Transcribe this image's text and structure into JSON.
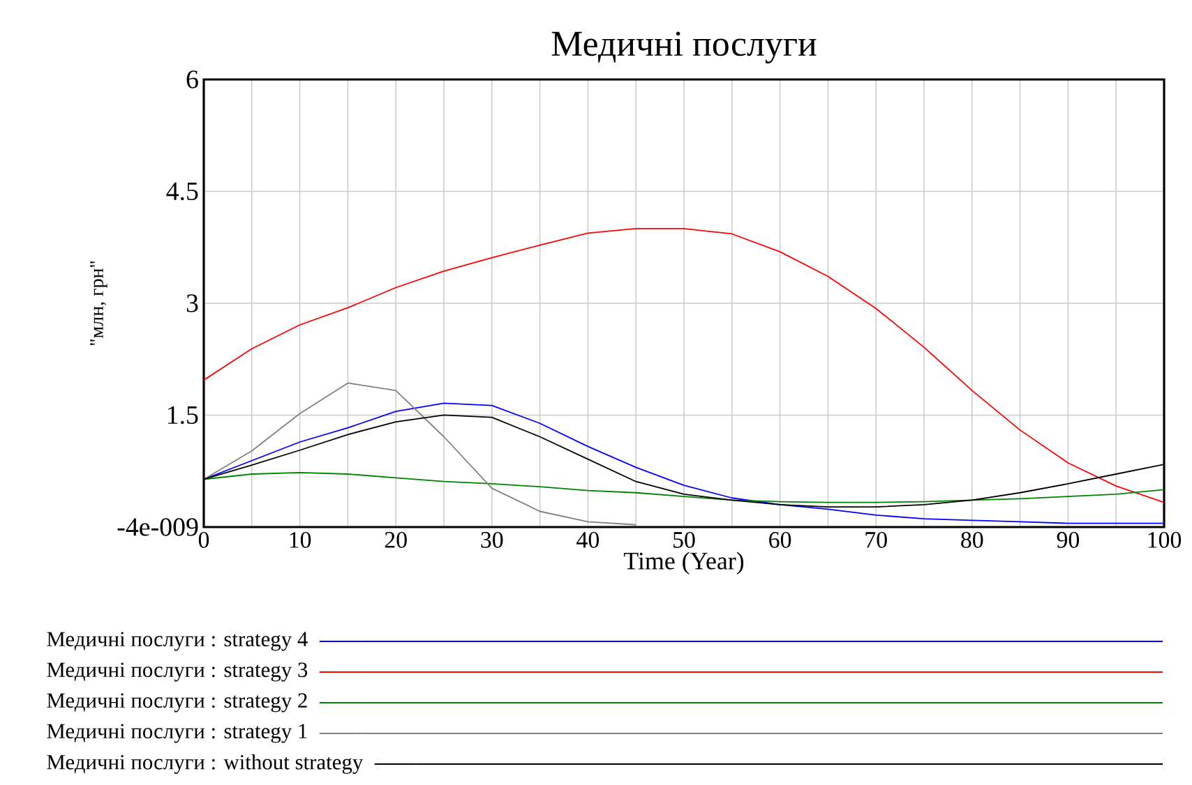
{
  "chart_data": {
    "type": "line",
    "title": "Медичні послуги",
    "xlabel": "Time (Year)",
    "ylabel": "\"млн, грн\"",
    "x": [
      0,
      5,
      10,
      15,
      20,
      25,
      30,
      35,
      40,
      45,
      50,
      55,
      60,
      65,
      70,
      75,
      80,
      85,
      90,
      95,
      100
    ],
    "xlim": [
      0,
      100
    ],
    "xticks": [
      0,
      10,
      20,
      30,
      40,
      50,
      60,
      70,
      80,
      90,
      100
    ],
    "ylim": [
      -4e-09,
      6
    ],
    "yticks": [
      {
        "value": -4e-09,
        "label": "-4e-009"
      },
      1.5,
      3,
      4.5,
      6
    ],
    "grid": true,
    "legend": "bottom",
    "marker": "none",
    "line_style": "solid",
    "series": [
      {
        "name": "Медичні послуги : strategy 4",
        "color": "#0000ff",
        "values": [
          0.64,
          0.89,
          1.14,
          1.33,
          1.55,
          1.66,
          1.63,
          1.39,
          1.08,
          0.8,
          0.56,
          0.39,
          0.3,
          0.24,
          0.16,
          0.11,
          0.09,
          0.07,
          0.05,
          0.05,
          0.05
        ]
      },
      {
        "name": "Медичні послуги : strategy 3",
        "color": "#ff0000",
        "values": [
          1.97,
          2.39,
          2.71,
          2.94,
          3.21,
          3.43,
          3.61,
          3.78,
          3.94,
          4.0,
          4.0,
          3.93,
          3.69,
          3.36,
          2.93,
          2.41,
          1.83,
          1.3,
          0.86,
          0.55,
          0.33
        ]
      },
      {
        "name": "Медичні послуги : strategy 2",
        "color": "#008000",
        "values": [
          0.64,
          0.71,
          0.73,
          0.71,
          0.66,
          0.61,
          0.58,
          0.54,
          0.49,
          0.46,
          0.41,
          0.36,
          0.34,
          0.33,
          0.33,
          0.34,
          0.36,
          0.38,
          0.41,
          0.44,
          0.5
        ]
      },
      {
        "name": "Медичні послуги : strategy 1",
        "color": "#808080",
        "values": [
          0.64,
          1.02,
          1.52,
          1.93,
          1.83,
          1.21,
          0.52,
          0.21,
          0.07,
          0.03,
          null,
          null,
          null,
          null,
          null,
          null,
          null,
          null,
          null,
          null,
          null
        ]
      },
      {
        "name": "Медичні послуги : without strategy",
        "color": "#000000",
        "values": [
          0.64,
          0.83,
          1.03,
          1.24,
          1.41,
          1.5,
          1.47,
          1.21,
          0.91,
          0.61,
          0.44,
          0.36,
          0.3,
          0.27,
          0.27,
          0.3,
          0.36,
          0.46,
          0.58,
          0.71,
          0.84
        ]
      }
    ]
  }
}
